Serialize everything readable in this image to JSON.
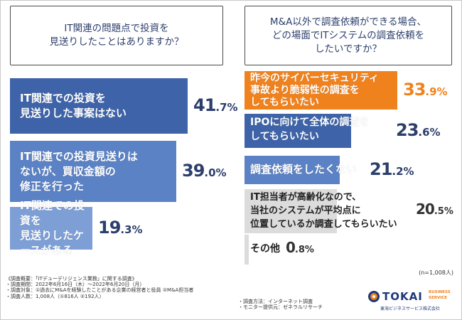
{
  "left_question": "IT関連の問題点で投資を\n見送りしたことはありますか？",
  "right_question": "M&A以外で調査依頼ができる場合、\nどの場面でITシステムの調査依頼を\nしたいですか？",
  "chart_data": [
    {
      "type": "bar",
      "orientation": "horizontal",
      "categories": [
        "IT関連での投資を\n見送りした事案はない",
        "IT関連での投資見送りは\nないが、買収金額の\n修正を行った",
        "IT関連での投資を\n見送りしたケースがある"
      ],
      "values": [
        41.7,
        39.0,
        19.3
      ],
      "unit": "%",
      "colors": [
        "#3e63a8",
        "#5b82c4",
        "#7d9fd6"
      ]
    },
    {
      "type": "bar",
      "orientation": "horizontal",
      "categories": [
        "昨今のサイバーセキュリティ\n事故より脆弱性の調査を\nしてもらいたい",
        "IPOに向けて全体の調査を\nしてもらいたい",
        "調査依頼をしたくない",
        "IT担当者が高齢化なので、\n当社のシステムが平均点に\n位置しているか調査してもらいたい",
        "その他"
      ],
      "values": [
        33.9,
        23.6,
        21.2,
        20.5,
        0.8
      ],
      "unit": "%",
      "colors": [
        "#f0821e",
        "#3e63a8",
        "#5b82c4",
        "#dcdcdc",
        "#dcdcdc"
      ],
      "note": "(n=1,008人)"
    }
  ],
  "footer_lines": [
    "《調査概要：「ITデューデリジェンス業務」に関する調査》",
    "・調査期間：2022年6月16日（木）～2022年6月20日（月）",
    "・調査対象：①過去にM&Aを経験したことがある企業の経営者と役員 ②M&A担当者",
    "・調査人数：1,008人（①816人 ②192人）"
  ],
  "footer_right_lines": [
    "・調査方法：インターネット調査",
    "・モニター提供元：ゼネラルリサーチ"
  ],
  "logo": {
    "name": "TOKAI",
    "sub1": "BUSINESS",
    "sub2": "SERVICE",
    "company": "東海ビジネスサービス株式会社",
    "colors": [
      "#1f3a78",
      "#f0821e"
    ]
  }
}
